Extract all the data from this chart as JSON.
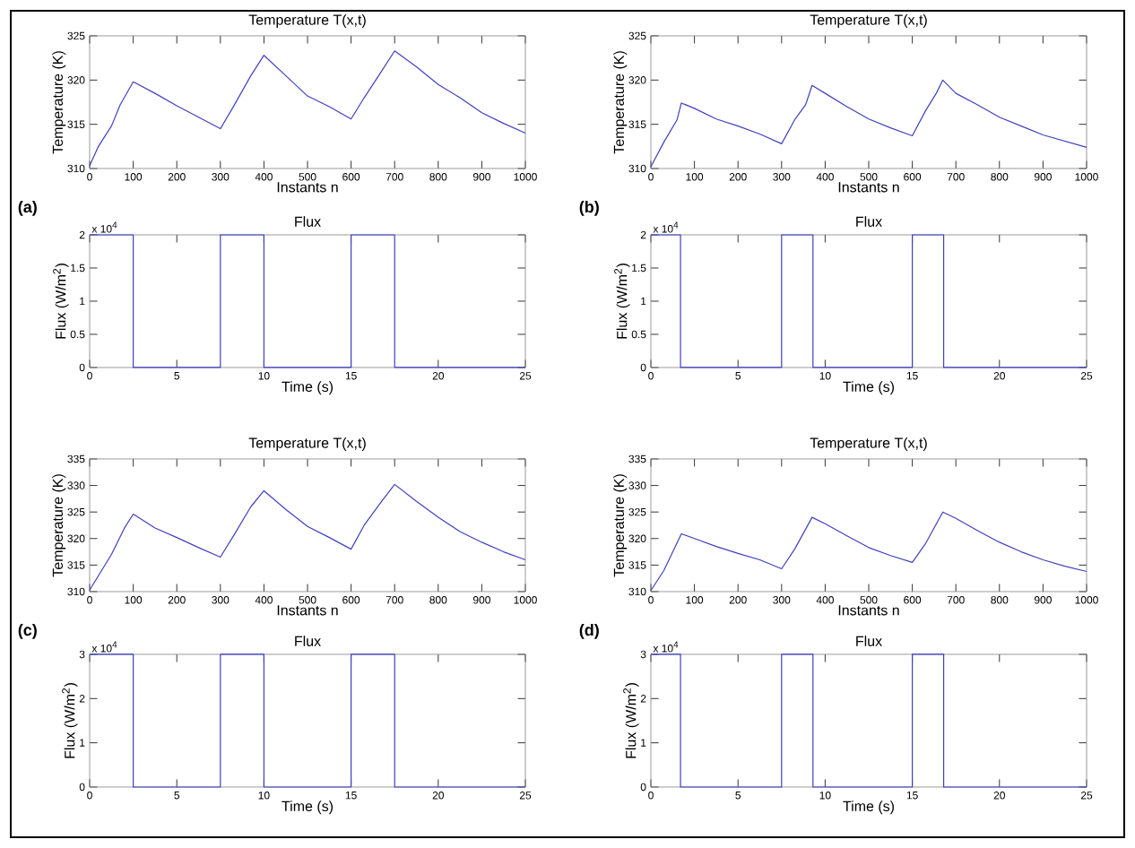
{
  "chart_data": [
    {
      "type": "line",
      "title": "Temperature T(x,t)",
      "xlabel": "Instants n",
      "ylabel": "Temperature (K)",
      "xlim": [
        0,
        1000
      ],
      "ylim": [
        310,
        325
      ],
      "xticks": [
        0,
        100,
        200,
        300,
        400,
        500,
        600,
        700,
        800,
        900,
        1000
      ],
      "yticks": [
        310,
        315,
        320,
        325
      ],
      "annotations": [
        "(a)"
      ],
      "x": [
        0,
        20,
        50,
        70,
        100,
        150,
        200,
        250,
        300,
        330,
        370,
        400,
        450,
        500,
        550,
        600,
        630,
        670,
        700,
        750,
        800,
        850,
        900,
        950,
        1000
      ],
      "series": [
        {
          "color": "#4040c0",
          "values": [
            310.3,
            312.5,
            314.8,
            317.2,
            319.8,
            318.5,
            317.1,
            315.8,
            314.5,
            317,
            320.5,
            322.8,
            320.5,
            318.2,
            317,
            315.6,
            318,
            321,
            323.3,
            321.5,
            319.5,
            318,
            316.3,
            315.1,
            314.0
          ]
        }
      ]
    },
    {
      "type": "line",
      "title": "Temperature T(x,t)",
      "xlabel": "Instants n",
      "ylabel": "Temperature (K)",
      "xlim": [
        0,
        1000
      ],
      "ylim": [
        310,
        325
      ],
      "xticks": [
        0,
        100,
        200,
        300,
        400,
        500,
        600,
        700,
        800,
        900,
        1000
      ],
      "yticks": [
        310,
        315,
        320,
        325
      ],
      "annotations": [
        "(b)"
      ],
      "x": [
        0,
        30,
        60,
        70,
        100,
        150,
        200,
        250,
        300,
        330,
        355,
        370,
        400,
        450,
        500,
        550,
        600,
        630,
        655,
        670,
        700,
        750,
        800,
        850,
        900,
        950,
        1000
      ],
      "series": [
        {
          "color": "#4040c0",
          "values": [
            310.2,
            313,
            315.5,
            317.4,
            316.8,
            315.6,
            314.8,
            313.9,
            312.8,
            315.5,
            317.2,
            319.4,
            318.5,
            317,
            315.6,
            314.6,
            313.7,
            316.5,
            318.5,
            320,
            318.5,
            317.2,
            315.8,
            314.8,
            313.8,
            313.1,
            312.4
          ]
        }
      ]
    },
    {
      "type": "line",
      "title": "Flux",
      "xlabel": "Time (s)",
      "ylabel": "Flux (W/m$^{2}$)",
      "xlim": [
        0,
        25
      ],
      "ylim": [
        0,
        2
      ],
      "xticks": [
        0,
        5,
        10,
        15,
        20,
        25
      ],
      "yticks": [
        0,
        0.5,
        1,
        1.5,
        2
      ],
      "annotations": [
        "x 10$^{4}$"
      ],
      "x": [
        0,
        2.5,
        2.5,
        7.5,
        7.5,
        10,
        10,
        15,
        15,
        17.5,
        17.5,
        25
      ],
      "series": [
        {
          "color": "#4040c0",
          "values": [
            2,
            2,
            0,
            0,
            2,
            2,
            0,
            0,
            2,
            2,
            0,
            0
          ]
        }
      ]
    },
    {
      "type": "line",
      "title": "Flux",
      "xlabel": "Time (s)",
      "ylabel": "Flux (W/m$^{2}$)",
      "xlim": [
        0,
        25
      ],
      "ylim": [
        0,
        2
      ],
      "xticks": [
        0,
        5,
        10,
        15,
        20,
        25
      ],
      "yticks": [
        0,
        0.5,
        1,
        1.5,
        2
      ],
      "annotations": [
        "x 10$^{4}$"
      ],
      "x": [
        0,
        1.7,
        1.7,
        7.5,
        7.5,
        9.3,
        9.3,
        15,
        15,
        16.8,
        16.8,
        25
      ],
      "series": [
        {
          "color": "#4040c0",
          "values": [
            2,
            2,
            0,
            0,
            2,
            2,
            0,
            0,
            2,
            2,
            0,
            0
          ]
        }
      ]
    },
    {
      "type": "line",
      "title": "Temperature T(x,t)",
      "xlabel": "Instants n",
      "ylabel": "Temperature (K)",
      "xlim": [
        0,
        1000
      ],
      "ylim": [
        310,
        335
      ],
      "xticks": [
        0,
        100,
        200,
        300,
        400,
        500,
        600,
        700,
        800,
        900,
        1000
      ],
      "yticks": [
        310,
        315,
        320,
        325,
        330,
        335
      ],
      "annotations": [
        "(c)"
      ],
      "x": [
        0,
        50,
        80,
        100,
        150,
        200,
        250,
        300,
        330,
        370,
        400,
        450,
        500,
        550,
        600,
        630,
        670,
        700,
        750,
        800,
        850,
        900,
        950,
        1000
      ],
      "series": [
        {
          "color": "#4040c0",
          "values": [
            310.3,
            317,
            322,
            324.6,
            322,
            320.2,
            318.3,
            316.5,
            320.5,
            326,
            329,
            325.5,
            322.3,
            320.2,
            318,
            322.5,
            327,
            330.2,
            327,
            324,
            321.3,
            319.3,
            317.5,
            316
          ]
        }
      ]
    },
    {
      "type": "line",
      "title": "Temperature T(x,t)",
      "xlabel": "Instants n",
      "ylabel": "Temperature (K)",
      "xlim": [
        0,
        1000
      ],
      "ylim": [
        310,
        335
      ],
      "xticks": [
        0,
        100,
        200,
        300,
        400,
        500,
        600,
        700,
        800,
        900,
        1000
      ],
      "yticks": [
        310,
        315,
        320,
        325,
        330,
        335
      ],
      "annotations": [
        "(d)"
      ],
      "x": [
        0,
        30,
        70,
        100,
        150,
        200,
        250,
        300,
        330,
        370,
        400,
        450,
        500,
        550,
        600,
        630,
        670,
        700,
        750,
        800,
        850,
        900,
        950,
        1000
      ],
      "series": [
        {
          "color": "#4040c0",
          "values": [
            310.2,
            314,
            320.9,
            320,
            318.5,
            317.2,
            316,
            314.3,
            318,
            324,
            322.8,
            320.5,
            318.3,
            316.8,
            315.5,
            319,
            325,
            323.8,
            321.5,
            319.3,
            317.5,
            316,
            314.8,
            313.8
          ]
        }
      ]
    },
    {
      "type": "line",
      "title": "Flux",
      "xlabel": "Time (s)",
      "ylabel": "Flux (W/m$^{2}$)",
      "xlim": [
        0,
        25
      ],
      "ylim": [
        0,
        3
      ],
      "xticks": [
        0,
        5,
        10,
        15,
        20,
        25
      ],
      "yticks": [
        0,
        1,
        2,
        3
      ],
      "annotations": [
        "x 10$^{4}$"
      ],
      "x": [
        0,
        2.5,
        2.5,
        7.5,
        7.5,
        10,
        10,
        15,
        15,
        17.5,
        17.5,
        25
      ],
      "series": [
        {
          "color": "#4040c0",
          "values": [
            3,
            3,
            0,
            0,
            3,
            3,
            0,
            0,
            3,
            3,
            0,
            0
          ]
        }
      ]
    },
    {
      "type": "line",
      "title": "Flux",
      "xlabel": "Time (s)",
      "ylabel": "Flux (W/m$^{2}$)",
      "xlim": [
        0,
        25
      ],
      "ylim": [
        0,
        3
      ],
      "xticks": [
        0,
        5,
        10,
        15,
        20,
        25
      ],
      "yticks": [
        0,
        1,
        2,
        3
      ],
      "annotations": [
        "x 10$^{4}$"
      ],
      "x": [
        0,
        1.7,
        1.7,
        7.5,
        7.5,
        9.3,
        9.3,
        15,
        15,
        16.8,
        16.8,
        25
      ],
      "series": [
        {
          "color": "#4040c0",
          "values": [
            3,
            3,
            0,
            0,
            3,
            3,
            0,
            0,
            3,
            3,
            0,
            0
          ]
        }
      ]
    }
  ]
}
